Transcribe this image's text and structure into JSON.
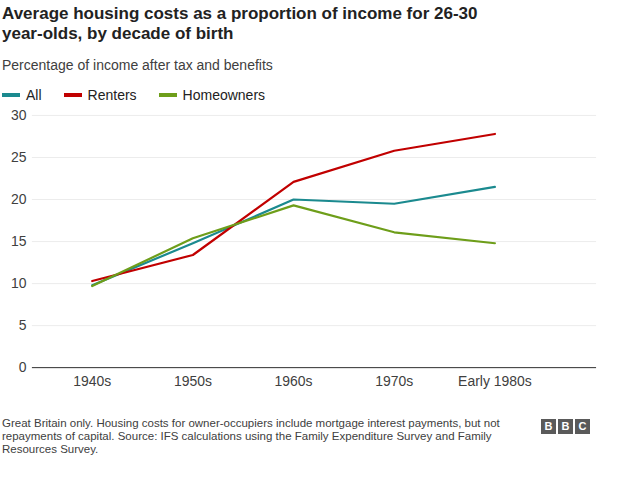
{
  "chart_data": {
    "type": "line",
    "title": "Average housing costs as a proportion of income for 26-30 year-olds, by decade of birth",
    "subtitle": "Percentage of income after tax and benefits",
    "categories": [
      "1940s",
      "1950s",
      "1960s",
      "1970s",
      "Early 1980s"
    ],
    "series": [
      {
        "name": "All",
        "color": "#1b8a8f",
        "values": [
          9.8,
          14.8,
          20.0,
          19.5,
          21.5
        ]
      },
      {
        "name": "Renters",
        "color": "#c10000",
        "values": [
          10.3,
          13.4,
          22.1,
          25.8,
          27.8
        ]
      },
      {
        "name": "Homeowners",
        "color": "#6e9e1a",
        "values": [
          9.7,
          15.4,
          19.3,
          16.1,
          14.8
        ]
      }
    ],
    "ylim": [
      0,
      30
    ],
    "yticks": [
      0,
      5,
      10,
      15,
      20,
      25,
      30
    ],
    "grid": true,
    "legend": "top-left",
    "caption": "Great Britain only. Housing costs for owner-occupiers include mortgage interest payments, but not repayments of capital. Source: IFS calculations using the Family Expenditure Survey and Family Resources Survey.",
    "logo": "BBC"
  }
}
